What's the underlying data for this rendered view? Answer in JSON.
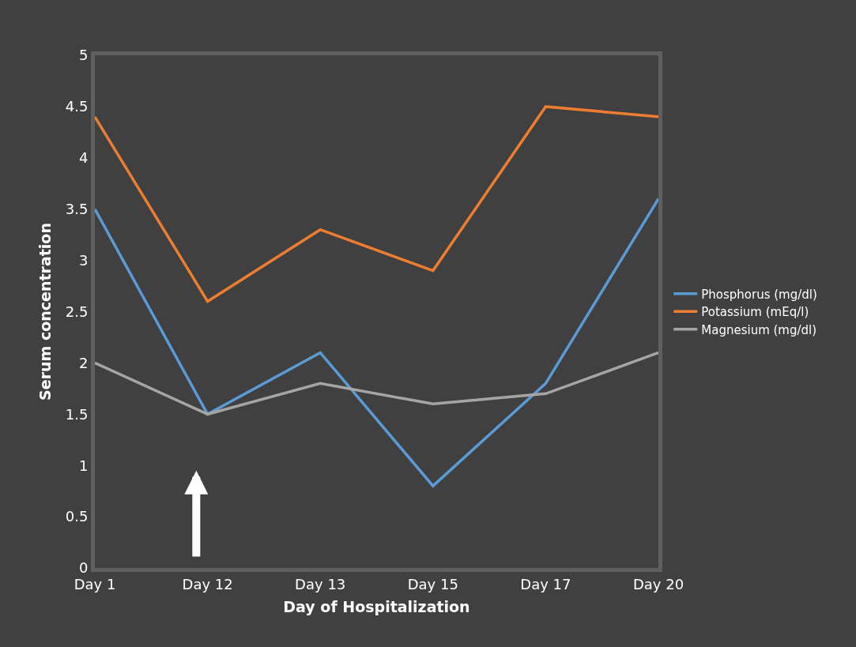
{
  "chart_data": {
    "type": "line",
    "xlabel": "Day of Hospitalization",
    "ylabel": "Serum concentration",
    "categories": [
      "Day 1",
      "Day 12",
      "Day 13",
      "Day 15",
      "Day 17",
      "Day 20"
    ],
    "series": [
      {
        "name": "Phosphorus (mg/dl)",
        "color": "#5b9bd5",
        "values": [
          3.5,
          1.5,
          2.1,
          0.8,
          1.8,
          3.6
        ]
      },
      {
        "name": "Potassium (mEq/l)",
        "color": "#ed7d31",
        "values": [
          4.4,
          2.6,
          3.3,
          2.9,
          4.5,
          4.4
        ]
      },
      {
        "name": "Magnesium (mg/dl)",
        "color": "#a5a5a5",
        "values": [
          2.0,
          1.5,
          1.8,
          1.6,
          1.7,
          2.1
        ]
      }
    ],
    "ylim": [
      0,
      5
    ],
    "yticks": [
      0,
      0.5,
      1,
      1.5,
      2,
      2.5,
      3,
      3.5,
      4,
      4.5,
      5
    ],
    "grid": false,
    "legend": "right",
    "marker": "none",
    "line_style": "solid"
  }
}
